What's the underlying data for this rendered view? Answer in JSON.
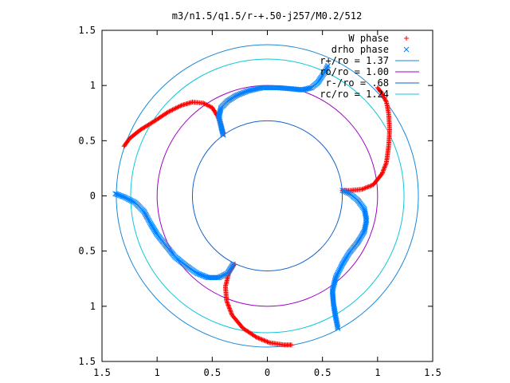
{
  "chart_data": {
    "type": "scatter",
    "title": "m3/n1.5/q1.5/r-+.50-j257/M0.2/512",
    "xlabel": "",
    "ylabel": "",
    "xlim": [
      -1.5,
      1.5
    ],
    "ylim": [
      -1.5,
      1.5
    ],
    "x_ticks": [
      -1.5,
      -1,
      -0.5,
      0,
      0.5,
      1,
      1.5
    ],
    "y_ticks": [
      -1.5,
      -1,
      -0.5,
      0,
      0.5,
      1,
      1.5
    ],
    "x_tick_labels": [
      "1.5",
      "1",
      "0.5",
      "0",
      "0.5",
      "1",
      "1.5"
    ],
    "y_tick_labels": [
      "1.5",
      "1",
      "0.5",
      "0",
      "0.5",
      "1",
      "1.5"
    ],
    "grid": false,
    "legend_position": "top-right",
    "legend": [
      {
        "label": "W phase",
        "color": "#ff0000",
        "marker": "plus"
      },
      {
        "label": "drho phase",
        "color": "#0080ff",
        "marker": "cross"
      },
      {
        "label": "r+/ro = 1.37",
        "color": "#1a88d8",
        "marker": "line"
      },
      {
        "label": "ro/ro = 1.00",
        "color": "#a000c8",
        "marker": "line"
      },
      {
        "label": "r-/ro = .68",
        "color": "#1060d0",
        "marker": "line"
      },
      {
        "label": "rc/ro = 1.24",
        "color": "#10c8d8",
        "marker": "line"
      }
    ],
    "circles": [
      {
        "radius": 1.37,
        "color": "#1a88d8"
      },
      {
        "radius": 1.0,
        "color": "#a000c8"
      },
      {
        "radius": 0.68,
        "color": "#1060d0"
      },
      {
        "radius": 1.24,
        "color": "#10c8d8"
      }
    ],
    "series": [
      {
        "name": "W phase",
        "color": "#ff0000",
        "marker": "plus",
        "arms": [
          [
            [
              -1.3,
              0.45
            ],
            [
              -1.25,
              0.52
            ],
            [
              -1.15,
              0.6
            ],
            [
              -1.02,
              0.68
            ],
            [
              -0.9,
              0.76
            ],
            [
              -0.78,
              0.82
            ],
            [
              -0.68,
              0.85
            ],
            [
              -0.58,
              0.84
            ],
            [
              -0.5,
              0.8
            ],
            [
              -0.45,
              0.72
            ],
            [
              -0.42,
              0.64
            ],
            [
              -0.4,
              0.56
            ]
          ],
          [
            [
              0.68,
              0.05
            ],
            [
              0.76,
              0.05
            ],
            [
              0.86,
              0.06
            ],
            [
              0.96,
              0.1
            ],
            [
              1.04,
              0.2
            ],
            [
              1.08,
              0.3
            ],
            [
              1.1,
              0.45
            ],
            [
              1.11,
              0.6
            ],
            [
              1.1,
              0.75
            ],
            [
              1.08,
              0.85
            ],
            [
              1.04,
              0.93
            ],
            [
              1.0,
              0.98
            ]
          ],
          [
            [
              -0.3,
              -0.62
            ],
            [
              -0.35,
              -0.7
            ],
            [
              -0.38,
              -0.82
            ],
            [
              -0.37,
              -0.95
            ],
            [
              -0.32,
              -1.08
            ],
            [
              -0.22,
              -1.2
            ],
            [
              -0.1,
              -1.28
            ],
            [
              0.02,
              -1.33
            ],
            [
              0.15,
              -1.35
            ],
            [
              0.22,
              -1.35
            ]
          ]
        ]
      },
      {
        "name": "drho phase",
        "color": "#0080ff",
        "marker": "cross",
        "arms": [
          [
            [
              -0.4,
              0.55
            ],
            [
              -0.42,
              0.63
            ],
            [
              -0.44,
              0.72
            ],
            [
              -0.42,
              0.8
            ],
            [
              -0.36,
              0.86
            ],
            [
              -0.28,
              0.91
            ],
            [
              -0.18,
              0.95
            ],
            [
              -0.05,
              0.98
            ],
            [
              0.1,
              0.98
            ],
            [
              0.22,
              0.97
            ],
            [
              0.32,
              0.96
            ],
            [
              0.4,
              0.98
            ],
            [
              0.46,
              1.03
            ],
            [
              0.52,
              1.12
            ],
            [
              0.55,
              1.18
            ]
          ],
          [
            [
              0.68,
              0.05
            ],
            [
              0.75,
              0.02
            ],
            [
              0.82,
              -0.04
            ],
            [
              0.88,
              -0.12
            ],
            [
              0.9,
              -0.22
            ],
            [
              0.88,
              -0.32
            ],
            [
              0.82,
              -0.42
            ],
            [
              0.74,
              -0.52
            ],
            [
              0.68,
              -0.62
            ],
            [
              0.62,
              -0.74
            ],
            [
              0.59,
              -0.86
            ],
            [
              0.6,
              -0.98
            ],
            [
              0.62,
              -1.1
            ],
            [
              0.64,
              -1.2
            ]
          ],
          [
            [
              -0.31,
              -0.62
            ],
            [
              -0.36,
              -0.7
            ],
            [
              -0.44,
              -0.74
            ],
            [
              -0.54,
              -0.74
            ],
            [
              -0.64,
              -0.7
            ],
            [
              -0.74,
              -0.63
            ],
            [
              -0.84,
              -0.55
            ],
            [
              -0.92,
              -0.45
            ],
            [
              -1.0,
              -0.35
            ],
            [
              -1.06,
              -0.25
            ],
            [
              -1.12,
              -0.14
            ],
            [
              -1.2,
              -0.06
            ],
            [
              -1.3,
              -0.01
            ],
            [
              -1.38,
              0.02
            ]
          ]
        ]
      }
    ]
  }
}
